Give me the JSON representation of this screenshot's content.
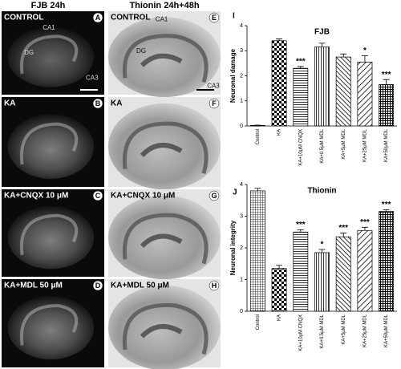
{
  "figure": {
    "columns": [
      "FJB 24h",
      "Thionin 24h+48h"
    ],
    "panels": [
      {
        "letter": "A",
        "label": "CONTROL",
        "regions": [
          "CA1",
          "DG",
          "CA3"
        ]
      },
      {
        "letter": "B",
        "label": "KA"
      },
      {
        "letter": "C",
        "label": "KA+CNQX 10 μM"
      },
      {
        "letter": "D",
        "label": "KA+MDL 50 μM"
      },
      {
        "letter": "E",
        "label": "CONTROL",
        "regions": [
          "CA1",
          "DG",
          "CA3"
        ]
      },
      {
        "letter": "F",
        "label": "KA"
      },
      {
        "letter": "G",
        "label": "KA+CNQX 10 μM"
      },
      {
        "letter": "H",
        "label": "KA+MDL 50 μM"
      }
    ]
  },
  "chart_data": [
    {
      "type": "bar",
      "panel": "I",
      "title": "FJB",
      "y_label": "Neuronal damage",
      "categories": [
        "Control",
        "KA",
        "KA+10μM CNQX",
        "KA+0.5μM MDL",
        "KA+5μM MDL",
        "KA+25μM MDL",
        "KA+50μM MDL"
      ],
      "values": [
        0.02,
        3.4,
        2.3,
        3.15,
        2.75,
        2.55,
        1.65
      ],
      "errors": [
        0.01,
        0.07,
        0.07,
        0.15,
        0.12,
        0.25,
        0.2
      ],
      "annotations": [
        null,
        null,
        "***",
        null,
        null,
        "*",
        "***"
      ],
      "ylim": [
        0,
        4
      ],
      "yticks": [
        0,
        1,
        2,
        3,
        4
      ]
    },
    {
      "type": "bar",
      "panel": "J",
      "title": "Thionin",
      "y_label": "Neuronal integrity",
      "categories": [
        "Control",
        "KA",
        "KA+10μM CNQX",
        "KA+0.5μM MDL",
        "KA+5μM MDL",
        "KA+25μM MDL",
        "KA+50μM MDL"
      ],
      "values": [
        3.8,
        1.35,
        2.5,
        1.85,
        2.35,
        2.55,
        3.15
      ],
      "errors": [
        0.08,
        0.1,
        0.07,
        0.1,
        0.12,
        0.1,
        0.05
      ],
      "annotations": [
        null,
        null,
        "***",
        "*",
        "***",
        "***",
        "***"
      ],
      "ylim": [
        0,
        4
      ],
      "yticks": [
        0,
        1,
        2,
        3,
        4
      ]
    }
  ]
}
